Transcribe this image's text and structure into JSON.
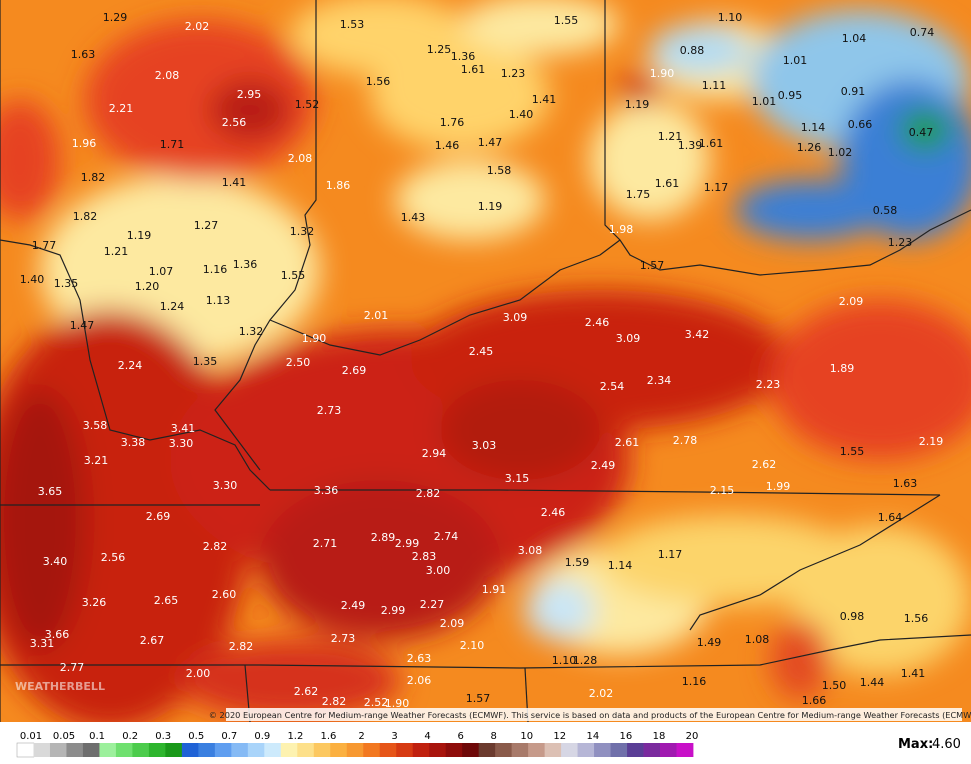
{
  "map": {
    "labels": [
      "1.29",
      "2.02",
      "1.53",
      "1.55",
      "1.10",
      "0.74",
      "1.04",
      "1.63",
      "1.25",
      "1.36",
      "1.61",
      "1.23",
      "0.88",
      "1.01",
      "2.08",
      "1.56",
      "1.90",
      "1.11",
      "0.91",
      "2.95",
      "2.21",
      "1.52",
      "1.41",
      "1.19",
      "1.01",
      "0.95",
      "2.56",
      "1.76",
      "1.40",
      "1.14",
      "0.66",
      "0.47",
      "1.96",
      "1.71",
      "1.46",
      "1.47",
      "1.21",
      "1.39",
      "1.61",
      "1.26",
      "1.02",
      "2.08",
      "1.82",
      "1.41",
      "1.86",
      "1.58",
      "1.61",
      "1.17",
      "1.75",
      "1.43",
      "1.19",
      "0.58",
      "1.82",
      "1.27",
      "1.32",
      "1.98",
      "1.23",
      "1.77",
      "1.19",
      "1.21",
      "1.57",
      "1.36",
      "1.07",
      "1.16",
      "1.55",
      "1.40",
      "1.35",
      "1.20",
      "2.09",
      "1.13",
      "1.24",
      "2.01",
      "3.09",
      "2.46",
      "1.47",
      "1.32",
      "3.42",
      "1.90",
      "3.09",
      "2.45",
      "1.35",
      "2.24",
      "2.50",
      "2.69",
      "1.89",
      "2.34",
      "2.54",
      "2.23",
      "2.73",
      "3.58",
      "3.41",
      "3.38",
      "3.30",
      "2.94",
      "3.03",
      "2.61",
      "2.78",
      "2.19",
      "1.55",
      "3.21",
      "2.49",
      "2.62",
      "3.15",
      "1.63",
      "3.30",
      "3.65",
      "3.36",
      "2.82",
      "2.15",
      "1.99",
      "2.69",
      "2.46",
      "1.64",
      "2.82",
      "2.71",
      "2.89",
      "2.99",
      "2.74",
      "3.08",
      "1.17",
      "2.83",
      "2.56",
      "3.40",
      "1.59",
      "1.14",
      "3.00",
      "1.91",
      "2.60",
      "3.26",
      "2.65",
      "2.49",
      "2.99",
      "2.27",
      "0.98",
      "1.56",
      "3.66",
      "2.09",
      "2.67",
      "1.49",
      "1.08",
      "3.31",
      "2.73",
      "2.10",
      "2.82",
      "2.63",
      "1.10",
      "1.28",
      "2.77",
      "2.00",
      "2.06",
      "1.16",
      "1.50",
      "1.44",
      "1.41",
      "1.66",
      "2.62",
      "2.82",
      "2.52",
      "1.90",
      "1.57",
      "2.02"
    ]
  },
  "watermark": "WEATHERBELL",
  "credit": "© 2020 European Centre for Medium-range Weather Forecasts (ECMWF). This service is based on data and products of the European Centre for Medium-range Weather Forecasts (ECMWF)",
  "colorbar": {
    "labels": [
      "0.01",
      "0.05",
      "0.1",
      "0.2",
      "0.3",
      "0.5",
      "0.7",
      "0.9",
      "1.2",
      "1.6",
      "2",
      "3",
      "4",
      "6",
      "8",
      "10",
      "12",
      "14",
      "16",
      "18",
      "20"
    ]
  },
  "max": {
    "label": "Max:",
    "value": "4.60"
  }
}
